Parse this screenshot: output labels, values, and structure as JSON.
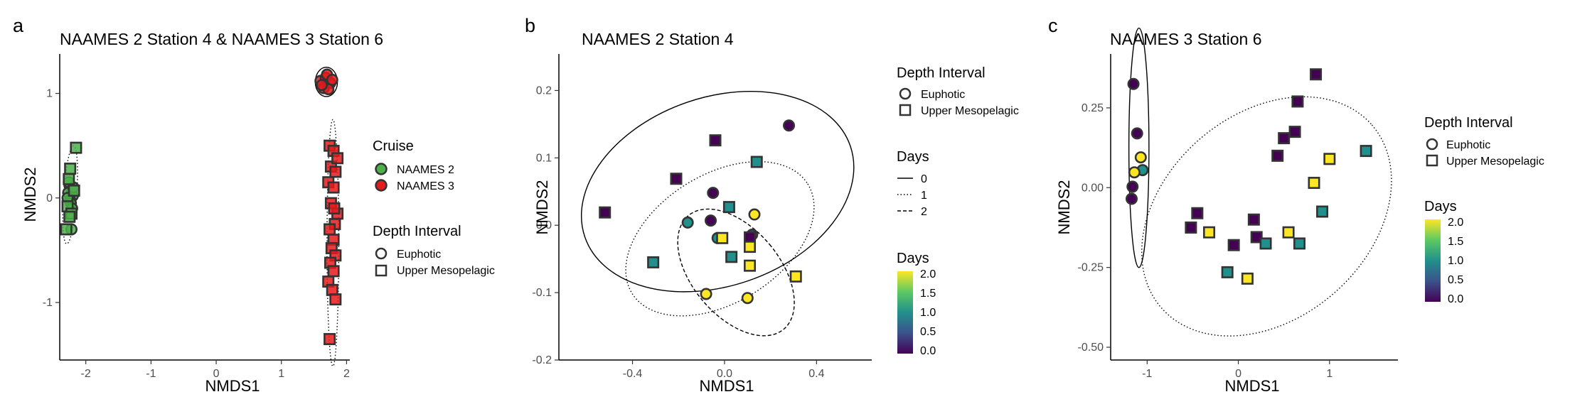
{
  "chart_data": [
    {
      "panel": "a",
      "type": "scatter",
      "title": "NAAMES 2 Station 4 & NAAMES 3 Station 6",
      "xlabel": "NMDS1",
      "ylabel": "NMDS2",
      "xlim": [
        -2.4,
        2.05
      ],
      "ylim": [
        -1.55,
        1.35
      ],
      "xticks": [
        -2,
        -1,
        0,
        1,
        2
      ],
      "yticks": [
        -1,
        0,
        1
      ],
      "grid": false,
      "legend_position": "right",
      "colors": {
        "NAAMES 2": "#4daf4a",
        "NAAMES 3": "#e41a1c"
      },
      "legends": [
        {
          "title": "Cruise",
          "kind": "color",
          "items": [
            "NAAMES 2",
            "NAAMES 3"
          ]
        },
        {
          "title": "Depth Interval",
          "kind": "shape",
          "items": [
            "Euphotic",
            "Upper Mesopelagic"
          ]
        }
      ],
      "series": [
        {
          "cruise": "NAAMES 2",
          "depth": "Euphotic",
          "points": [
            [
              -2.25,
              0.12
            ],
            [
              -2.22,
              0.08
            ],
            [
              -2.27,
              0.05
            ],
            [
              -2.2,
              0.02
            ],
            [
              -2.24,
              -0.02
            ],
            [
              -2.23,
              -0.05
            ],
            [
              -2.21,
              -0.1
            ],
            [
              -2.26,
              0.15
            ],
            [
              -2.19,
              0.1
            ],
            [
              -2.22,
              -0.3
            ],
            [
              -2.28,
              0.0
            ]
          ]
        },
        {
          "cruise": "NAAMES 2",
          "depth": "Upper Mesopelagic",
          "points": [
            [
              -2.15,
              0.48
            ],
            [
              -2.24,
              0.28
            ],
            [
              -2.26,
              0.18
            ],
            [
              -2.18,
              0.07
            ],
            [
              -2.28,
              -0.08
            ],
            [
              -2.22,
              -0.15
            ],
            [
              -2.3,
              -0.3
            ],
            [
              -2.25,
              -0.18
            ]
          ]
        },
        {
          "cruise": "NAAMES 3",
          "depth": "Euphotic",
          "points": [
            [
              1.6,
              1.12
            ],
            [
              1.68,
              1.15
            ],
            [
              1.75,
              1.1
            ],
            [
              1.65,
              1.05
            ],
            [
              1.72,
              1.04
            ],
            [
              1.7,
              1.18
            ],
            [
              1.62,
              1.08
            ],
            [
              1.78,
              1.13
            ]
          ]
        },
        {
          "cruise": "NAAMES 3",
          "depth": "Upper Mesopelagic",
          "points": [
            [
              1.74,
              0.5
            ],
            [
              1.8,
              0.45
            ],
            [
              1.76,
              0.3
            ],
            [
              1.83,
              0.25
            ],
            [
              1.72,
              0.15
            ],
            [
              1.8,
              0.1
            ],
            [
              1.86,
              -0.15
            ],
            [
              1.76,
              -0.05
            ],
            [
              1.82,
              -0.25
            ],
            [
              1.74,
              -0.3
            ],
            [
              1.8,
              -0.4
            ],
            [
              1.77,
              -0.48
            ],
            [
              1.83,
              -0.55
            ],
            [
              1.75,
              -0.62
            ],
            [
              1.8,
              -0.7
            ],
            [
              1.72,
              -0.8
            ],
            [
              1.78,
              -0.88
            ],
            [
              1.83,
              -0.97
            ],
            [
              1.74,
              -1.35
            ],
            [
              1.86,
              0.38
            ],
            [
              1.81,
              -0.1
            ]
          ]
        }
      ],
      "ellipses": [
        {
          "center": [
            -2.24,
            0.03
          ],
          "rx": 0.1,
          "ry": 0.47,
          "angle": -4,
          "line": "dotted"
        },
        {
          "center": [
            1.69,
            1.11
          ],
          "rx": 0.17,
          "ry": 0.14,
          "angle": 0,
          "line": "solid"
        },
        {
          "center": [
            1.79,
            -0.43
          ],
          "rx": 0.09,
          "ry": 1.18,
          "angle": 0,
          "line": "dotted"
        }
      ]
    },
    {
      "panel": "b",
      "type": "scatter",
      "title": "NAAMES 2 Station 4",
      "xlabel": "NMDS1",
      "ylabel": "NMDS2",
      "xlim": [
        -0.72,
        0.64
      ],
      "ylim": [
        -0.2,
        0.25
      ],
      "xticks": [
        -0.4,
        0.0,
        0.4
      ],
      "yticks": [
        -0.2,
        -0.1,
        0.0,
        0.1,
        0.2
      ],
      "grid": false,
      "legend_position": "right",
      "color_scale": {
        "name": "viridis",
        "min": 0,
        "max": 2,
        "stops": [
          "#440154",
          "#3b528b",
          "#21908c",
          "#5dc963",
          "#fde725"
        ]
      },
      "legends": [
        {
          "title": "Depth Interval",
          "kind": "shape",
          "items": [
            "Euphotic",
            "Upper Mesopelagic"
          ]
        },
        {
          "title": "Days",
          "kind": "linetype",
          "items": [
            "0",
            "1",
            "2"
          ]
        },
        {
          "title": "Days",
          "kind": "colorbar",
          "ticks": [
            "2.0",
            "1.5",
            "1.0",
            "0.5",
            "0.0"
          ]
        }
      ],
      "points": [
        {
          "shape": "circle",
          "x": 0.28,
          "y": 0.148,
          "day": 0
        },
        {
          "shape": "circle",
          "x": -0.05,
          "y": 0.048,
          "day": 0
        },
        {
          "shape": "circle",
          "x": -0.06,
          "y": 0.007,
          "day": 0
        },
        {
          "shape": "circle",
          "x": -0.16,
          "y": 0.004,
          "day": 1
        },
        {
          "shape": "circle",
          "x": -0.03,
          "y": -0.019,
          "day": 1
        },
        {
          "shape": "circle",
          "x": 0.12,
          "y": -0.014,
          "day": 0.5
        },
        {
          "shape": "circle",
          "x": 0.13,
          "y": 0.016,
          "day": 2
        },
        {
          "shape": "circle",
          "x": -0.08,
          "y": -0.102,
          "day": 2
        },
        {
          "shape": "circle",
          "x": 0.1,
          "y": -0.108,
          "day": 2
        },
        {
          "shape": "square",
          "x": -0.52,
          "y": 0.019,
          "day": 0
        },
        {
          "shape": "square",
          "x": -0.21,
          "y": 0.069,
          "day": 0
        },
        {
          "shape": "square",
          "x": -0.04,
          "y": 0.126,
          "day": 0
        },
        {
          "shape": "square",
          "x": 0.14,
          "y": 0.094,
          "day": 1
        },
        {
          "shape": "square",
          "x": 0.02,
          "y": 0.027,
          "day": 1
        },
        {
          "shape": "square",
          "x": -0.31,
          "y": -0.055,
          "day": 1
        },
        {
          "shape": "square",
          "x": 0.03,
          "y": -0.047,
          "day": 1
        },
        {
          "shape": "square",
          "x": 0.11,
          "y": -0.018,
          "day": 0
        },
        {
          "shape": "square",
          "x": 0.11,
          "y": -0.032,
          "day": 2
        },
        {
          "shape": "square",
          "x": -0.01,
          "y": -0.019,
          "day": 2
        },
        {
          "shape": "square",
          "x": 0.11,
          "y": -0.06,
          "day": 2
        },
        {
          "shape": "square",
          "x": 0.31,
          "y": -0.076,
          "day": 2
        }
      ],
      "ellipses": [
        {
          "day": "0",
          "center": [
            -0.03,
            0.05
          ],
          "rx": 0.61,
          "ry": 0.14,
          "angle": 19,
          "line": "solid"
        },
        {
          "day": "1",
          "center": [
            -0.02,
            -0.02
          ],
          "rx": 0.45,
          "ry": 0.095,
          "angle": 32,
          "line": "dotted"
        },
        {
          "day": "2",
          "center": [
            0.05,
            -0.07
          ],
          "rx": 0.19,
          "ry": 0.11,
          "angle": 40,
          "line": "dashed"
        }
      ]
    },
    {
      "panel": "c",
      "type": "scatter",
      "title": "NAAMES 3 Station 6",
      "xlabel": "NMDS1",
      "ylabel": "NMDS2",
      "xlim": [
        -1.4,
        1.75
      ],
      "ylim": [
        -0.54,
        0.41
      ],
      "xticks": [
        -1,
        0,
        1
      ],
      "yticks": [
        -0.5,
        -0.25,
        0.0,
        0.25
      ],
      "grid": false,
      "legend_position": "right",
      "color_scale": {
        "name": "viridis",
        "min": 0,
        "max": 2,
        "stops": [
          "#440154",
          "#3b528b",
          "#21908c",
          "#5dc963",
          "#fde725"
        ]
      },
      "legends": [
        {
          "title": "Depth Interval",
          "kind": "shape",
          "items": [
            "Euphotic",
            "Upper Mesopelagic"
          ]
        },
        {
          "title": "Days",
          "kind": "colorbar",
          "ticks": [
            "2.0",
            "1.5",
            "1.0",
            "0.5",
            "0.0"
          ]
        }
      ],
      "points": [
        {
          "shape": "circle",
          "x": -1.15,
          "y": 0.325,
          "day": 0
        },
        {
          "shape": "circle",
          "x": -1.11,
          "y": 0.17,
          "day": 0
        },
        {
          "shape": "circle",
          "x": -1.07,
          "y": 0.095,
          "day": 2
        },
        {
          "shape": "circle",
          "x": -1.05,
          "y": 0.055,
          "day": 1
        },
        {
          "shape": "circle",
          "x": -1.14,
          "y": 0.048,
          "day": 2
        },
        {
          "shape": "circle",
          "x": -1.16,
          "y": 0.003,
          "day": 0
        },
        {
          "shape": "circle",
          "x": -1.17,
          "y": -0.035,
          "day": 0
        },
        {
          "shape": "square",
          "x": 0.85,
          "y": 0.355,
          "day": 0
        },
        {
          "shape": "square",
          "x": 0.65,
          "y": 0.27,
          "day": 0
        },
        {
          "shape": "square",
          "x": 0.62,
          "y": 0.175,
          "day": 0
        },
        {
          "shape": "square",
          "x": 0.5,
          "y": 0.155,
          "day": 0
        },
        {
          "shape": "square",
          "x": 0.43,
          "y": 0.1,
          "day": 0
        },
        {
          "shape": "square",
          "x": 1.0,
          "y": 0.09,
          "day": 2
        },
        {
          "shape": "square",
          "x": 1.4,
          "y": 0.115,
          "day": 1
        },
        {
          "shape": "square",
          "x": 0.83,
          "y": 0.015,
          "day": 2
        },
        {
          "shape": "square",
          "x": 0.92,
          "y": -0.075,
          "day": 1
        },
        {
          "shape": "square",
          "x": -0.45,
          "y": -0.08,
          "day": 0
        },
        {
          "shape": "square",
          "x": -0.52,
          "y": -0.125,
          "day": 0
        },
        {
          "shape": "square",
          "x": -0.32,
          "y": -0.14,
          "day": 2
        },
        {
          "shape": "square",
          "x": 0.17,
          "y": -0.1,
          "day": 0
        },
        {
          "shape": "square",
          "x": 0.2,
          "y": -0.155,
          "day": 0
        },
        {
          "shape": "square",
          "x": -0.05,
          "y": -0.18,
          "day": 0
        },
        {
          "shape": "square",
          "x": 0.3,
          "y": -0.175,
          "day": 1
        },
        {
          "shape": "square",
          "x": 0.55,
          "y": -0.14,
          "day": 2
        },
        {
          "shape": "square",
          "x": 0.67,
          "y": -0.175,
          "day": 1
        },
        {
          "shape": "square",
          "x": -0.12,
          "y": -0.265,
          "day": 1
        },
        {
          "shape": "square",
          "x": 0.1,
          "y": -0.285,
          "day": 2
        }
      ],
      "ellipses": [
        {
          "center": [
            -1.09,
            0.125
          ],
          "rx": 0.11,
          "ry": 0.375,
          "angle": 0,
          "line": "solid"
        },
        {
          "center": [
            0.31,
            -0.09
          ],
          "rx": 1.53,
          "ry": 0.32,
          "angle": 41,
          "line": "dotted"
        }
      ]
    }
  ]
}
